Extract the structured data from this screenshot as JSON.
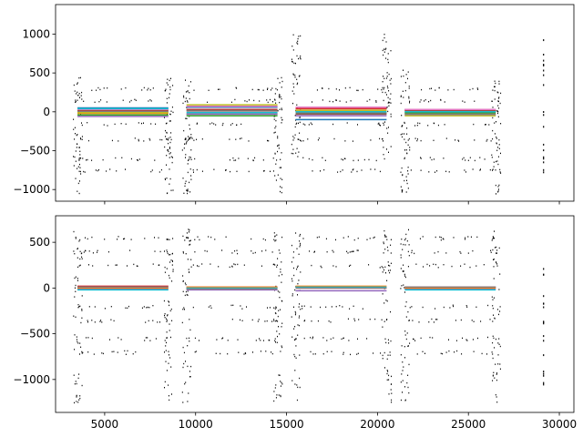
{
  "chart_data": [
    {
      "type": "scatter",
      "title": "",
      "xlabel": "",
      "ylabel": "",
      "xlim": [
        2300,
        30800
      ],
      "ylim": [
        -1150,
        1380
      ],
      "x_ticks": [
        5000,
        10000,
        15000,
        20000,
        25000,
        30000
      ],
      "x_tick_labels_visible": false,
      "y_ticks": [
        -1000,
        -500,
        0,
        500,
        1000
      ],
      "y_tick_labels": [
        "−1000",
        "−500",
        "0",
        "500",
        "1000"
      ],
      "grid": false,
      "legend": "none",
      "segments": [
        {
          "x_start": 3500,
          "x_end": 8500
        },
        {
          "x_start": 9500,
          "x_end": 14500
        },
        {
          "x_start": 15500,
          "x_end": 20500
        },
        {
          "x_start": 21500,
          "x_end": 26500
        }
      ],
      "isolated_x": 29100,
      "scatter_color": "#000000",
      "series": [
        {
          "color": "#1f77b4",
          "values": [
            50,
            60,
            -100,
            30
          ]
        },
        {
          "color": "#ff7f0e",
          "values": [
            -20,
            -30,
            10,
            -20
          ]
        },
        {
          "color": "#2ca02c",
          "values": [
            -40,
            -50,
            -20,
            -10
          ]
        },
        {
          "color": "#d62728",
          "values": [
            20,
            30,
            40,
            20
          ]
        },
        {
          "color": "#9467bd",
          "values": [
            -60,
            -30,
            -50,
            -40
          ]
        },
        {
          "color": "#8c564b",
          "values": [
            10,
            20,
            -30,
            10
          ]
        },
        {
          "color": "#e377c2",
          "values": [
            30,
            70,
            60,
            30
          ]
        },
        {
          "color": "#7f7f7f",
          "values": [
            0,
            10,
            -10,
            -30
          ]
        },
        {
          "color": "#bcbd22",
          "values": [
            -10,
            90,
            20,
            -50
          ]
        },
        {
          "color": "#17becf",
          "values": [
            40,
            -10,
            0,
            0
          ]
        }
      ]
    },
    {
      "type": "scatter",
      "title": "",
      "xlabel": "",
      "ylabel": "",
      "xlim": [
        2300,
        30800
      ],
      "ylim": [
        -1360,
        790
      ],
      "x_ticks": [
        5000,
        10000,
        15000,
        20000,
        25000,
        30000
      ],
      "x_tick_labels": [
        "5000",
        "10000",
        "15000",
        "20000",
        "25000",
        "30000"
      ],
      "y_ticks": [
        -1000,
        -500,
        0,
        500
      ],
      "y_tick_labels": [
        "−1000",
        "−500",
        "0",
        "500"
      ],
      "grid": false,
      "legend": "none",
      "segments": [
        {
          "x_start": 3500,
          "x_end": 8500
        },
        {
          "x_start": 9500,
          "x_end": 14500
        },
        {
          "x_start": 15500,
          "x_end": 20500
        },
        {
          "x_start": 21500,
          "x_end": 26500
        }
      ],
      "isolated_x": 29100,
      "scatter_color": "#000000",
      "series": [
        {
          "color": "#9467bd",
          "values": [
            -10,
            -20,
            -30,
            -10
          ]
        },
        {
          "color": "#d62728",
          "values": [
            20,
            10,
            0,
            10
          ]
        },
        {
          "color": "#ff7f0e",
          "values": [
            0,
            10,
            20,
            0
          ]
        },
        {
          "color": "#17becf",
          "values": [
            -20,
            0,
            10,
            -20
          ]
        },
        {
          "color": "#7f7f7f",
          "values": [
            10,
            -10,
            0,
            10
          ]
        }
      ]
    }
  ]
}
